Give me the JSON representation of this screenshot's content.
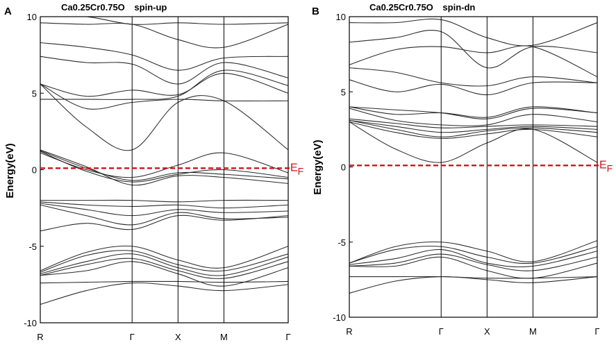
{
  "chart_data": [
    {
      "type": "line",
      "panel_label": "A",
      "title": "Ca0.25Cr0.75O   spin-up",
      "title_parts": {
        "formula": "Ca0.25Cr0.75O",
        "spin": "spin-up"
      },
      "ylabel": "Energy(eV)",
      "ylim": [
        -10,
        10
      ],
      "yticks": [
        10,
        5,
        0,
        -5,
        -10
      ],
      "ytick_labels": [
        "10",
        "5",
        "0",
        "-5",
        "-10"
      ],
      "kpoints": [
        "R",
        "Γ",
        "X",
        "M",
        "Γ"
      ],
      "kpoint_positions": [
        0,
        1,
        1.5,
        2,
        2.7
      ],
      "fermi_level": 0.1,
      "fermi_label": "EF",
      "bands": [
        [
          -8.8,
          -7.9,
          -7.4,
          -7.6,
          -7.9,
          -7.5
        ],
        [
          -7.4,
          -7.35,
          -7.3,
          -7.3,
          -7.35,
          -7.3
        ],
        [
          -6.9,
          -6.6,
          -6.0,
          -6.8,
          -7.6,
          -6.4
        ],
        [
          -6.9,
          -6.2,
          -5.8,
          -6.6,
          -7.1,
          -6.0
        ],
        [
          -6.8,
          -6.0,
          -5.5,
          -6.4,
          -6.9,
          -5.7
        ],
        [
          -6.7,
          -5.6,
          -5.3,
          -6.2,
          -6.6,
          -5.5
        ],
        [
          -6.6,
          -5.4,
          -5.0,
          -5.9,
          -6.4,
          -5.0
        ],
        [
          -4.0,
          -3.5,
          -3.9,
          -3.0,
          -3.3,
          -3.0
        ],
        [
          -2.3,
          -3.0,
          -3.6,
          -2.8,
          -3.2,
          -3.1
        ],
        [
          -2.2,
          -2.6,
          -3.0,
          -2.6,
          -2.8,
          -2.7
        ],
        [
          -2.1,
          -2.3,
          -2.4,
          -2.3,
          -2.5,
          -2.3
        ],
        [
          -2.0,
          -2.0,
          -2.0,
          -2.1,
          -2.0,
          -2.0
        ],
        [
          1.3,
          0.2,
          -1.0,
          -0.4,
          -0.5,
          -0.9
        ],
        [
          1.25,
          0.1,
          -0.7,
          -0.2,
          -0.3,
          -0.6
        ],
        [
          1.2,
          -0.1,
          -0.8,
          -0.3,
          0.0,
          -0.5
        ],
        [
          1.1,
          0.0,
          -0.5,
          0.3,
          1.1,
          -0.2
        ],
        [
          5.6,
          2.8,
          1.3,
          4.4,
          4.5,
          1.3
        ],
        [
          5.6,
          4.0,
          4.4,
          4.6,
          4.5,
          4.5
        ],
        [
          5.6,
          4.8,
          5.2,
          4.9,
          6.3,
          5.0
        ],
        [
          4.6,
          4.6,
          4.6,
          4.8,
          6.5,
          5.5
        ],
        [
          7.4,
          7.0,
          6.9,
          5.6,
          7.0,
          6.0
        ],
        [
          8.3,
          8.0,
          7.5,
          6.5,
          7.3,
          7.4
        ],
        [
          9.6,
          9.5,
          9.5,
          8.5,
          8.0,
          9.5
        ],
        [
          10.0,
          10.0,
          9.5,
          9.6,
          9.5,
          9.6
        ]
      ]
    },
    {
      "type": "line",
      "panel_label": "B",
      "title": "Ca0.25Cr0.75O   spin-dn",
      "title_parts": {
        "formula": "Ca0.25Cr0.75O",
        "spin": "spin-dn"
      },
      "ylabel": "Energy(eV)",
      "ylim": [
        -10,
        10
      ],
      "yticks": [
        10,
        5,
        0,
        -5,
        -10
      ],
      "ytick_labels": [
        "10",
        "5",
        "0",
        "-5",
        "-10"
      ],
      "kpoints": [
        "R",
        "Γ",
        "X",
        "M",
        "Γ"
      ],
      "kpoint_positions": [
        0,
        1,
        1.5,
        2,
        2.7
      ],
      "fermi_level": 0.1,
      "fermi_label": "EF",
      "bands": [
        [
          -8.4,
          -7.6,
          -7.3,
          -7.5,
          -7.7,
          -7.3
        ],
        [
          -7.3,
          -7.3,
          -7.3,
          -7.4,
          -7.4,
          -7.3
        ],
        [
          -6.6,
          -6.6,
          -6.0,
          -6.9,
          -7.4,
          -6.4
        ],
        [
          -6.6,
          -6.4,
          -5.8,
          -6.5,
          -6.9,
          -6.0
        ],
        [
          -6.5,
          -6.1,
          -5.5,
          -6.4,
          -6.6,
          -5.6
        ],
        [
          -6.4,
          -5.5,
          -5.3,
          -6.0,
          -6.4,
          -5.3
        ],
        [
          -6.4,
          -5.3,
          -5.0,
          -5.6,
          -6.3,
          -4.9
        ],
        [
          3.0,
          1.2,
          0.3,
          1.6,
          2.5,
          0.3
        ],
        [
          3.0,
          2.3,
          1.9,
          2.2,
          2.5,
          2.0
        ],
        [
          3.1,
          2.5,
          2.0,
          2.4,
          2.6,
          2.3
        ],
        [
          3.1,
          2.7,
          2.3,
          2.5,
          2.7,
          2.5
        ],
        [
          3.2,
          2.9,
          2.6,
          2.7,
          2.8,
          2.7
        ],
        [
          3.9,
          3.1,
          2.8,
          2.8,
          3.5,
          3.0
        ],
        [
          4.0,
          3.5,
          3.6,
          3.3,
          4.0,
          3.6
        ],
        [
          4.0,
          3.8,
          3.6,
          3.2,
          3.9,
          3.6
        ],
        [
          5.8,
          5.0,
          5.5,
          4.8,
          5.6,
          5.6
        ],
        [
          6.6,
          6.3,
          5.6,
          5.4,
          6.0,
          5.6
        ],
        [
          6.8,
          7.8,
          8.0,
          7.6,
          8.0,
          6.0
        ],
        [
          8.3,
          8.6,
          9.0,
          6.6,
          8.0,
          7.6
        ],
        [
          9.6,
          9.6,
          9.8,
          8.6,
          8.1,
          9.6
        ]
      ]
    }
  ]
}
